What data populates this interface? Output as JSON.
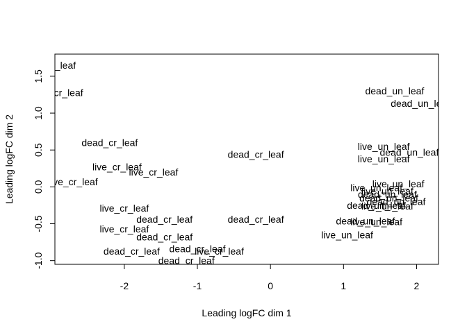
{
  "chart_data": {
    "type": "scatter",
    "title": "",
    "xlabel": "Leading logFC dim 1",
    "ylabel": "Leading logFC dim 2",
    "xlim": [
      -2.95,
      2.3
    ],
    "ylim": [
      -1.05,
      1.8
    ],
    "x_ticks": [
      -2,
      -1,
      0,
      1,
      2
    ],
    "y_ticks": [
      -1.0,
      -0.5,
      0.0,
      0.5,
      1.0,
      1.5
    ],
    "y_tick_labels": [
      "-1.0",
      "-0.5",
      "0.0",
      "0.5",
      "1.0",
      "1.5"
    ],
    "grid": false,
    "marker": "text-label",
    "points": [
      {
        "label": "live_cr_leaf",
        "x": -3.0,
        "y": 1.65
      },
      {
        "label": "live_cr_leaf",
        "x": -2.9,
        "y": 1.28
      },
      {
        "label": "dead_cr_leaf",
        "x": -2.2,
        "y": 0.6
      },
      {
        "label": "live_cr_leaf",
        "x": -2.1,
        "y": 0.27
      },
      {
        "label": "live_cr_leaf",
        "x": -1.6,
        "y": 0.2
      },
      {
        "label": "live_cr_leaf",
        "x": -2.7,
        "y": 0.07
      },
      {
        "label": "dead_cr_leaf",
        "x": -0.2,
        "y": 0.44
      },
      {
        "label": "live_cr_leaf",
        "x": -2.0,
        "y": -0.29
      },
      {
        "label": "dead_cr_leaf",
        "x": -1.45,
        "y": -0.44
      },
      {
        "label": "live_cr_leaf",
        "x": -2.0,
        "y": -0.57
      },
      {
        "label": "dead_cr_leaf",
        "x": -1.45,
        "y": -0.68
      },
      {
        "label": "dead_cr_leaf",
        "x": -0.2,
        "y": -0.44
      },
      {
        "label": "dead_cr_leaf",
        "x": -1.9,
        "y": -0.87
      },
      {
        "label": "dead_cr_leaf",
        "x": -1.0,
        "y": -0.84
      },
      {
        "label": "live_cr_leaf",
        "x": -0.7,
        "y": -0.87
      },
      {
        "label": "dead_cr_leaf",
        "x": -1.15,
        "y": -1.0
      },
      {
        "label": "dead_un_leaf",
        "x": 1.7,
        "y": 1.3
      },
      {
        "label": "dead_un_leaf",
        "x": 2.05,
        "y": 1.13
      },
      {
        "label": "live_un_leaf",
        "x": 1.55,
        "y": 0.55
      },
      {
        "label": "dead_un_leaf",
        "x": 1.9,
        "y": 0.47
      },
      {
        "label": "live_un_leaf",
        "x": 1.55,
        "y": 0.38
      },
      {
        "label": "live_un_leaf",
        "x": 1.75,
        "y": 0.04
      },
      {
        "label": "live_un_leaf",
        "x": 1.45,
        "y": -0.01
      },
      {
        "label": "live_un_leaf",
        "x": 1.6,
        "y": -0.06
      },
      {
        "label": "dead_un_leaf",
        "x": 1.6,
        "y": -0.1
      },
      {
        "label": "dead_un_leaf",
        "x": 1.62,
        "y": -0.15
      },
      {
        "label": "dead_un_leaf",
        "x": 1.72,
        "y": -0.2
      },
      {
        "label": "dead_un_leaf",
        "x": 1.45,
        "y": -0.25
      },
      {
        "label": "live_un_leaf",
        "x": 1.6,
        "y": -0.26
      },
      {
        "label": "dead_un_leaf",
        "x": 1.3,
        "y": -0.46
      },
      {
        "label": "live_un_leaf",
        "x": 1.45,
        "y": -0.47
      },
      {
        "label": "live_un_leaf",
        "x": 1.05,
        "y": -0.65
      }
    ]
  }
}
